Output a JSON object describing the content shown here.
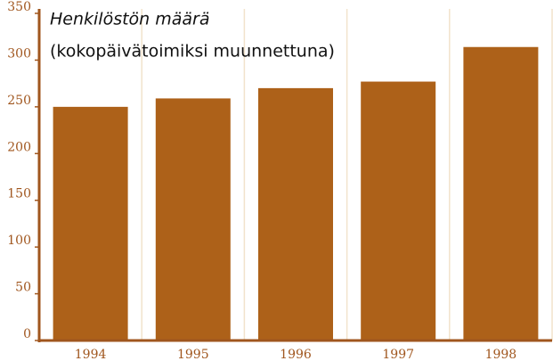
{
  "chart_data": {
    "type": "bar",
    "title": "Henkilöstön määrä",
    "subtitle": "(kokopäivätoimiksi muunnettuna)",
    "categories": [
      "1994",
      "1995",
      "1996",
      "1997",
      "1998"
    ],
    "values": [
      250,
      259,
      270,
      277,
      314
    ],
    "color": "#ad6119",
    "ylim": [
      0,
      350
    ],
    "yticks": [
      0,
      50,
      100,
      150,
      200,
      250,
      300,
      350
    ]
  }
}
